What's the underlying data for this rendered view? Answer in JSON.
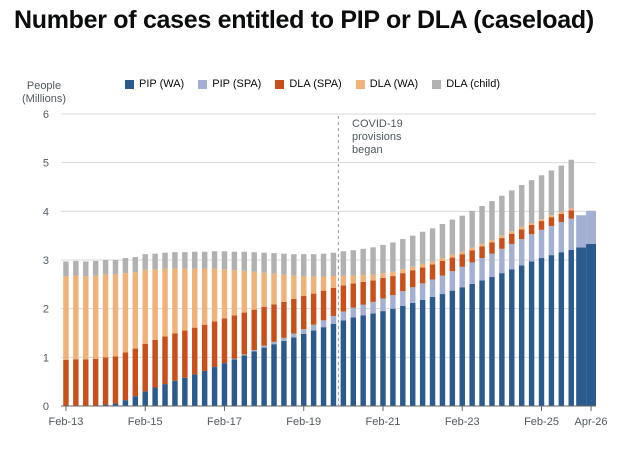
{
  "title": "Number of cases entitled to PIP or DLA (caseload)",
  "ylabel_line1": "People",
  "ylabel_line2": "(Millions)",
  "annotation_line1": "COVID-19",
  "annotation_line2": "provisions",
  "annotation_line3": "began",
  "colors": {
    "pip_wa": "#2b5a8f",
    "pip_spa": "#a3b0d2",
    "dla_spa": "#c9501b",
    "dla_wa": "#f0b278",
    "dla_child": "#b1b1b1",
    "axis": "#666666",
    "grid": "#d9d9d9",
    "annotation_line": "#999999"
  },
  "chart_data": {
    "type": "bar",
    "stacked": true,
    "series": [
      {
        "name": "PIP (WA)",
        "key": "pip_wa"
      },
      {
        "name": "PIP (SPA)",
        "key": "pip_spa"
      },
      {
        "name": "DLA (SPA)",
        "key": "dla_spa"
      },
      {
        "name": "DLA (WA)",
        "key": "dla_wa"
      },
      {
        "name": "DLA (child)",
        "key": "dla_child"
      }
    ],
    "x": [
      "Feb-13",
      "May-13",
      "Aug-13",
      "Nov-13",
      "Feb-14",
      "May-14",
      "Aug-14",
      "Nov-14",
      "Feb-15",
      "May-15",
      "Aug-15",
      "Nov-15",
      "Feb-16",
      "May-16",
      "Aug-16",
      "Nov-16",
      "Feb-17",
      "May-17",
      "Aug-17",
      "Nov-17",
      "Feb-18",
      "May-18",
      "Aug-18",
      "Nov-18",
      "Feb-19",
      "May-19",
      "Aug-19",
      "Nov-19",
      "Feb-20",
      "May-20",
      "Aug-20",
      "Nov-20",
      "Feb-21",
      "May-21",
      "Aug-21",
      "Nov-21",
      "Feb-22",
      "May-22",
      "Aug-22",
      "Nov-22",
      "Feb-23",
      "May-23",
      "Aug-23",
      "Nov-23",
      "Feb-24",
      "May-24",
      "Aug-24",
      "Nov-24",
      "Feb-25",
      "May-25",
      "Aug-25",
      "Nov-25",
      "Feb-26",
      "Apr-26"
    ],
    "projected_from_index": 52,
    "x_tick_labels": [
      {
        "index": 0,
        "label": "Feb-13"
      },
      {
        "index": 8,
        "label": "Feb-15"
      },
      {
        "index": 16,
        "label": "Feb-17"
      },
      {
        "index": 24,
        "label": "Feb-19"
      },
      {
        "index": 32,
        "label": "Feb-21"
      },
      {
        "index": 40,
        "label": "Feb-23"
      },
      {
        "index": 48,
        "label": "Feb-25"
      },
      {
        "index": 53,
        "label": "Apr-26"
      }
    ],
    "annotation_index": 28,
    "ylim": [
      0,
      6
    ],
    "yticks": [
      0,
      1,
      2,
      3,
      4,
      5,
      6
    ],
    "grid": true,
    "legend": "top",
    "values": {
      "pip_wa": [
        0,
        0,
        0,
        0,
        0.03,
        0.05,
        0.12,
        0.2,
        0.3,
        0.38,
        0.45,
        0.52,
        0.58,
        0.65,
        0.72,
        0.8,
        0.88,
        0.96,
        1.04,
        1.12,
        1.2,
        1.27,
        1.34,
        1.41,
        1.48,
        1.55,
        1.62,
        1.69,
        1.76,
        1.82,
        1.86,
        1.9,
        1.95,
        2.0,
        2.06,
        2.12,
        2.18,
        2.24,
        2.3,
        2.37,
        2.44,
        2.51,
        2.58,
        2.65,
        2.73,
        2.81,
        2.89,
        2.97,
        3.04,
        3.1,
        3.16,
        3.21,
        3.26,
        3.33
      ],
      "pip_spa": [
        0,
        0,
        0,
        0,
        0,
        0,
        0,
        0,
        0,
        0,
        0,
        0,
        0,
        0,
        0,
        0,
        0,
        0.01,
        0.02,
        0.03,
        0.04,
        0.05,
        0.06,
        0.08,
        0.1,
        0.12,
        0.14,
        0.16,
        0.18,
        0.2,
        0.22,
        0.24,
        0.26,
        0.28,
        0.3,
        0.32,
        0.34,
        0.36,
        0.38,
        0.4,
        0.42,
        0.44,
        0.46,
        0.48,
        0.5,
        0.52,
        0.54,
        0.56,
        0.58,
        0.6,
        0.62,
        0.64,
        0.66,
        0.68
      ],
      "dla_spa": [
        0.95,
        0.96,
        0.96,
        0.97,
        0.97,
        0.97,
        0.98,
        0.98,
        0.98,
        0.98,
        0.98,
        0.97,
        0.97,
        0.96,
        0.95,
        0.94,
        0.92,
        0.89,
        0.86,
        0.83,
        0.8,
        0.77,
        0.74,
        0.71,
        0.68,
        0.64,
        0.61,
        0.58,
        0.54,
        0.5,
        0.47,
        0.44,
        0.42,
        0.39,
        0.37,
        0.35,
        0.33,
        0.31,
        0.3,
        0.28,
        0.26,
        0.25,
        0.24,
        0.23,
        0.22,
        0.21,
        0.2,
        0.19,
        0.18,
        0.18,
        0.17,
        0.17,
        0,
        0
      ],
      "dla_wa": [
        1.72,
        1.72,
        1.71,
        1.71,
        1.7,
        1.68,
        1.63,
        1.57,
        1.52,
        1.45,
        1.39,
        1.33,
        1.27,
        1.21,
        1.15,
        1.08,
        1.01,
        0.93,
        0.86,
        0.78,
        0.7,
        0.63,
        0.56,
        0.48,
        0.41,
        0.35,
        0.29,
        0.24,
        0.2,
        0.16,
        0.14,
        0.12,
        0.1,
        0.09,
        0.08,
        0.07,
        0.07,
        0.06,
        0.06,
        0.06,
        0.05,
        0.05,
        0.05,
        0.05,
        0.05,
        0.05,
        0.05,
        0.04,
        0.04,
        0.04,
        0.04,
        0.04,
        0,
        0
      ],
      "dla_child": [
        0.3,
        0.3,
        0.3,
        0.3,
        0.3,
        0.3,
        0.31,
        0.31,
        0.32,
        0.32,
        0.33,
        0.34,
        0.34,
        0.35,
        0.35,
        0.36,
        0.37,
        0.38,
        0.39,
        0.4,
        0.41,
        0.42,
        0.43,
        0.44,
        0.45,
        0.46,
        0.47,
        0.48,
        0.5,
        0.52,
        0.54,
        0.56,
        0.58,
        0.6,
        0.62,
        0.64,
        0.66,
        0.68,
        0.7,
        0.72,
        0.74,
        0.76,
        0.78,
        0.8,
        0.82,
        0.84,
        0.86,
        0.88,
        0.9,
        0.92,
        0.95,
        1.0,
        0,
        0
      ]
    }
  },
  "legend_items": [
    {
      "label": "PIP (WA)",
      "key": "pip_wa"
    },
    {
      "label": "PIP (SPA)",
      "key": "pip_spa"
    },
    {
      "label": "DLA (SPA)",
      "key": "dla_spa"
    },
    {
      "label": "DLA (WA)",
      "key": "dla_wa"
    },
    {
      "label": "DLA (child)",
      "key": "dla_child"
    }
  ]
}
